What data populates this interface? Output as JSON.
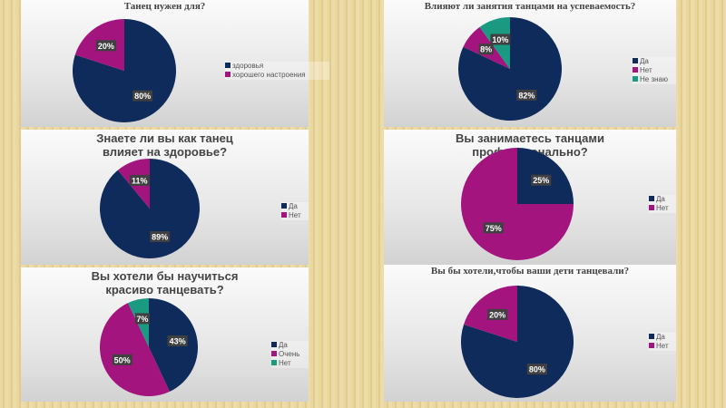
{
  "colors": {
    "navy": "#0f2b5b",
    "magenta": "#a3147f",
    "teal": "#1b9a82"
  },
  "chart_data": [
    {
      "type": "pie",
      "title": "Танец нужен для?",
      "categories": [
        "здоровья",
        "хорошего настроения"
      ],
      "values": [
        80,
        20
      ],
      "labels": [
        "80%",
        "20%"
      ],
      "legend": "right"
    },
    {
      "type": "pie",
      "title": "Влияют ли занятия танцами на успеваемость?",
      "categories": [
        "Да",
        "Нет",
        "Не знаю"
      ],
      "values": [
        82,
        8,
        10
      ],
      "labels": [
        "82%",
        "8%",
        "10%"
      ],
      "legend": "right"
    },
    {
      "type": "pie",
      "title": "Знаете ли вы как танец влияет на здоровье?",
      "categories": [
        "Да",
        "Нет"
      ],
      "values": [
        89,
        11
      ],
      "labels": [
        "89%",
        "11%"
      ],
      "legend": "right"
    },
    {
      "type": "pie",
      "title": "Вы занимаетесь танцами профессионально?",
      "categories": [
        "Да",
        "Нет"
      ],
      "values": [
        25,
        75
      ],
      "labels": [
        "25%",
        "75%"
      ],
      "legend": "right"
    },
    {
      "type": "pie",
      "title": "Вы хотели бы научиться красиво танцевать?",
      "categories": [
        "Да",
        "Очень",
        "Нет"
      ],
      "values": [
        43,
        50,
        7
      ],
      "labels": [
        "43%",
        "50%",
        "7%"
      ],
      "legend": "right"
    },
    {
      "type": "pie",
      "title": "Вы бы хотели,чтобы ваши дети танцевали?",
      "categories": [
        "Да",
        "Нет"
      ],
      "values": [
        80,
        20
      ],
      "labels": [
        "80%",
        "20%"
      ],
      "legend": "right"
    }
  ]
}
